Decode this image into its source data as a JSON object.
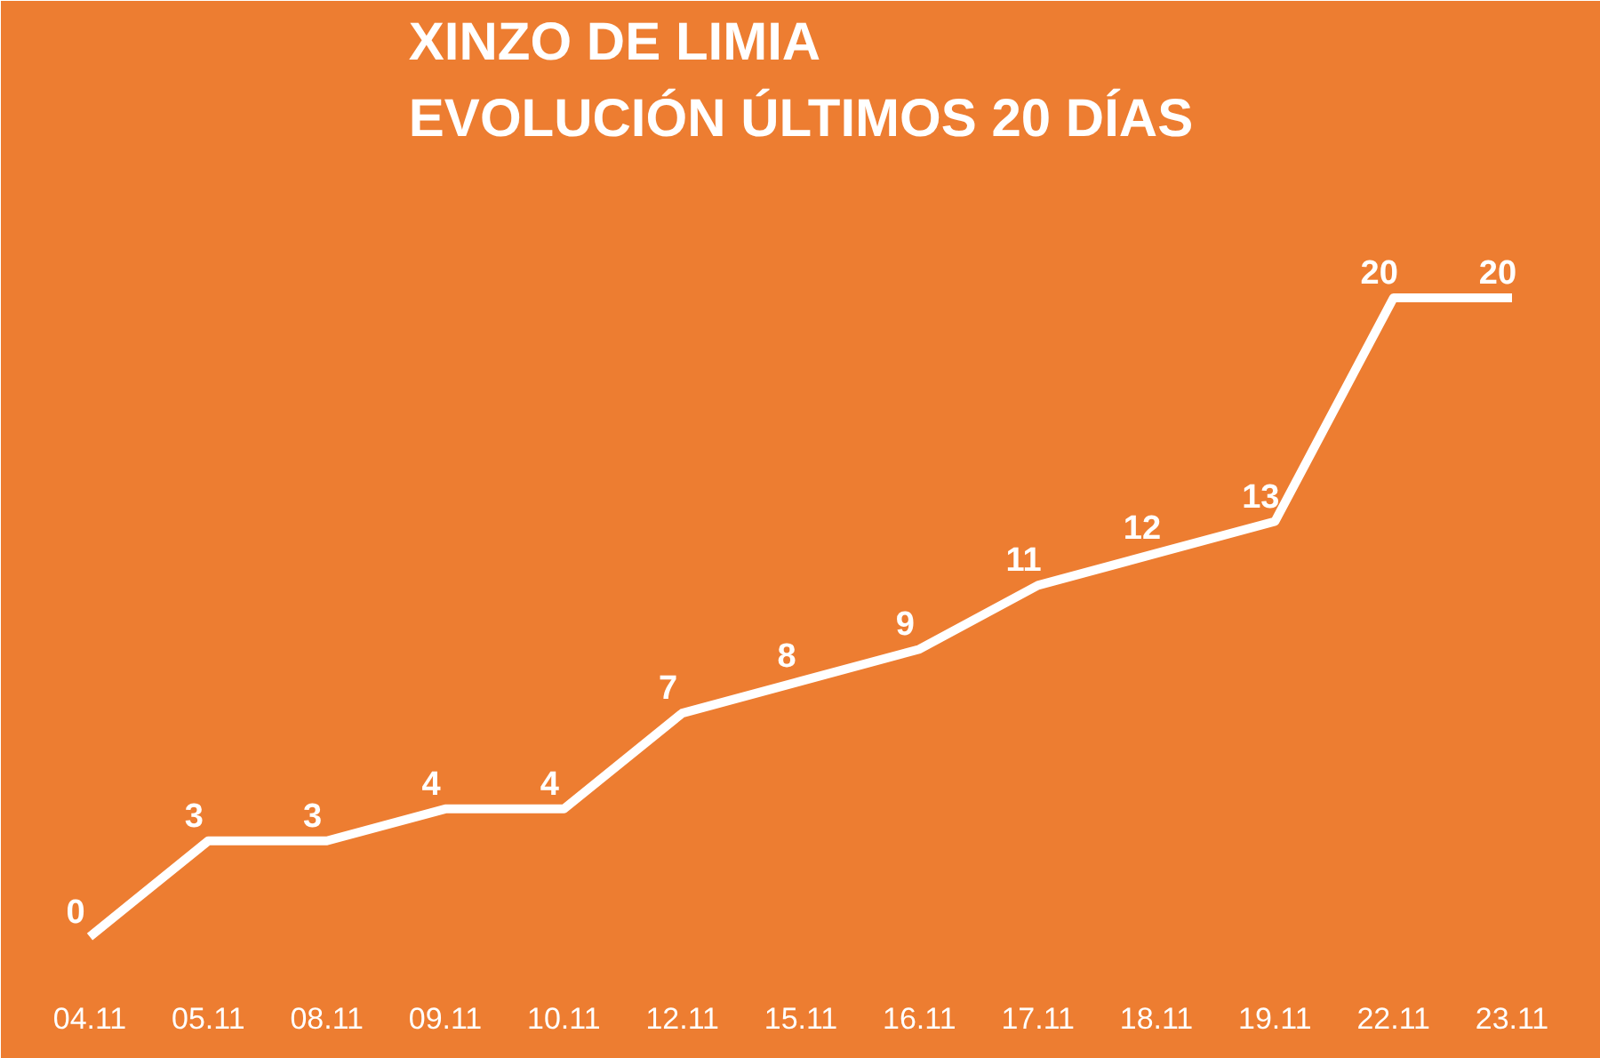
{
  "chart_data": {
    "type": "line",
    "title": "XINZO DE LIMIA\nEVOLUCIÓN ÚLTIMOS 20 DÍAS",
    "categories": [
      "04.11",
      "05.11",
      "08.11",
      "09.11",
      "10.11",
      "12.11",
      "15.11",
      "16.11",
      "17.11",
      "18.11",
      "19.11",
      "22.11",
      "23.11"
    ],
    "series": [
      {
        "color": "#ffffff",
        "values": [
          0,
          3,
          3,
          4,
          4,
          7,
          8,
          9,
          11,
          12,
          13,
          20,
          20
        ]
      }
    ],
    "data_labels": true,
    "line_style": "solid"
  }
}
